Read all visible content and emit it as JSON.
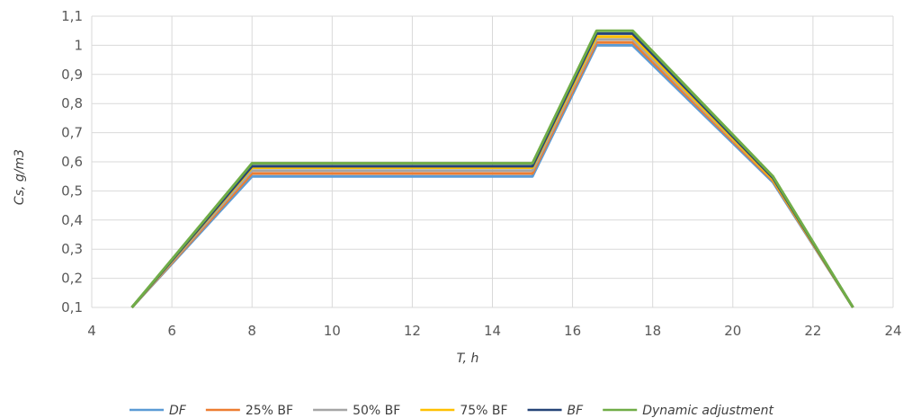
{
  "chart_data": {
    "type": "line",
    "xlabel": "T, h",
    "ylabel": "Cs, g/m3",
    "xlim": [
      4,
      24
    ],
    "ylim": [
      0.1,
      1.1
    ],
    "x_ticks": [
      "4",
      "6",
      "8",
      "10",
      "12",
      "14",
      "16",
      "18",
      "20",
      "22",
      "24"
    ],
    "y_ticks": [
      "0,1",
      "0,2",
      "0,3",
      "0,4",
      "0,5",
      "0,6",
      "0,7",
      "0,8",
      "0,9",
      "1",
      "1,1"
    ],
    "grid": true,
    "legend_position": "bottom",
    "series": [
      {
        "name": "DF",
        "color": "#5b9bd5",
        "x": [
          5,
          8,
          15,
          16.6,
          17.5,
          21,
          23
        ],
        "y": [
          0.1,
          0.55,
          0.55,
          1.0,
          1.0,
          0.53,
          0.1
        ]
      },
      {
        "name": "25% BF",
        "color": "#ed7d31",
        "x": [
          5,
          8,
          15,
          16.6,
          17.5,
          21,
          23
        ],
        "y": [
          0.1,
          0.56,
          0.56,
          1.01,
          1.01,
          0.535,
          0.1
        ]
      },
      {
        "name": "50% BF",
        "color": "#a5a5a5",
        "x": [
          5,
          8,
          15,
          16.6,
          17.5,
          21,
          23
        ],
        "y": [
          0.1,
          0.57,
          0.57,
          1.02,
          1.02,
          0.54,
          0.1
        ]
      },
      {
        "name": "75% BF",
        "color": "#ffc000",
        "x": [
          5,
          8,
          15,
          16.6,
          17.5,
          21,
          23
        ],
        "y": [
          0.1,
          0.58,
          0.58,
          1.03,
          1.03,
          0.54,
          0.1
        ]
      },
      {
        "name": "BF",
        "color": "#264478",
        "x": [
          5,
          8,
          15,
          16.6,
          17.5,
          21,
          23
        ],
        "y": [
          0.1,
          0.585,
          0.585,
          1.04,
          1.04,
          0.545,
          0.1
        ]
      },
      {
        "name": "Dynamic adjustment",
        "color": "#70ad47",
        "x": [
          5,
          8,
          15,
          16.6,
          17.5,
          21,
          23
        ],
        "y": [
          0.1,
          0.595,
          0.595,
          1.05,
          1.05,
          0.55,
          0.1
        ]
      }
    ]
  }
}
